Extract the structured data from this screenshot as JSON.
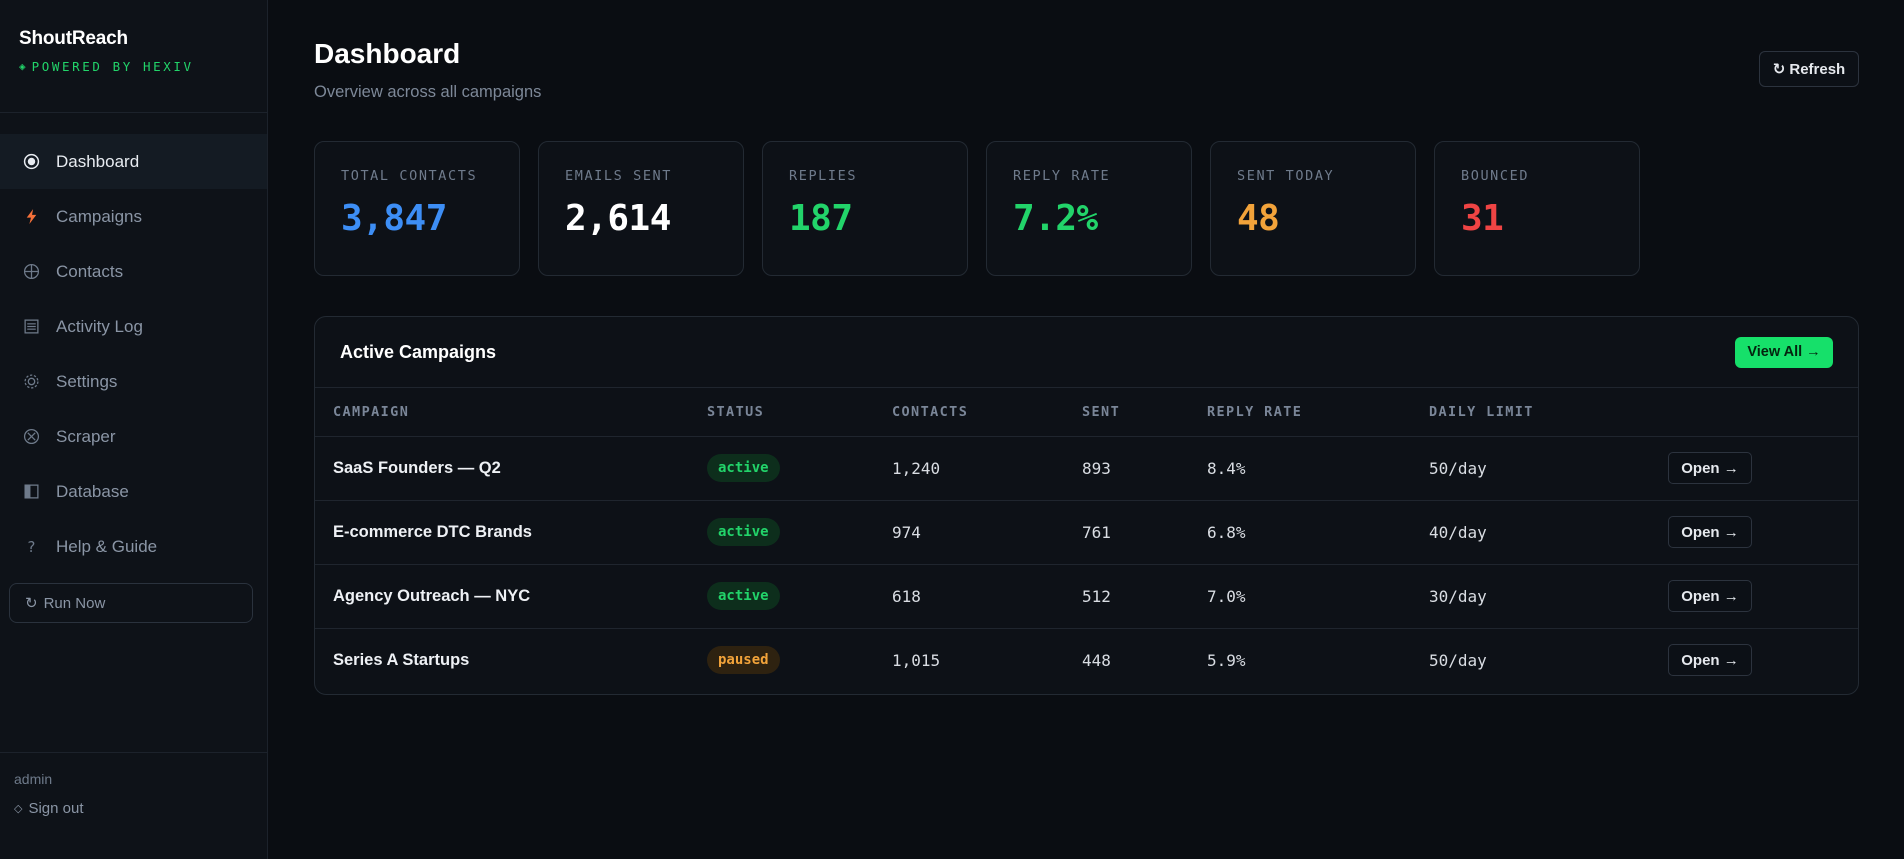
{
  "brand": {
    "name": "ShoutReach",
    "sub": "POWERED BY HEXIV",
    "sub_icon": "◈"
  },
  "nav": [
    {
      "label": "Dashboard",
      "icon": "dot-circle-icon",
      "active": true
    },
    {
      "label": "Campaigns",
      "icon": "bolt-icon",
      "active": false
    },
    {
      "label": "Contacts",
      "icon": "globe-icon",
      "active": false
    },
    {
      "label": "Activity Log",
      "icon": "list-icon",
      "active": false
    },
    {
      "label": "Settings",
      "icon": "gear-icon",
      "active": false
    },
    {
      "label": "Scraper",
      "icon": "crosshair-icon",
      "active": false
    },
    {
      "label": "Database",
      "icon": "database-icon",
      "active": false
    },
    {
      "label": "Help & Guide",
      "icon": "question-icon",
      "active": false
    }
  ],
  "run_now": {
    "label": "Run Now",
    "icon": "↻"
  },
  "footer": {
    "user": "admin",
    "signout": "Sign out",
    "signout_icon": "◇"
  },
  "header": {
    "title": "Dashboard",
    "subtitle": "Overview across all campaigns",
    "refresh_label": "Refresh",
    "refresh_icon": "↻"
  },
  "stats": [
    {
      "label": "TOTAL CONTACTS",
      "value": "3,847",
      "color": "#3d8ef5"
    },
    {
      "label": "EMAILS SENT",
      "value": "2,614",
      "color": "#ffffff"
    },
    {
      "label": "REPLIES",
      "value": "187",
      "color": "#22d46a"
    },
    {
      "label": "REPLY RATE",
      "value": "7.2%",
      "color": "#22d46a"
    },
    {
      "label": "SENT TODAY",
      "value": "48",
      "color": "#f2a33a"
    },
    {
      "label": "BOUNCED",
      "value": "31",
      "color": "#ef4444"
    }
  ],
  "campaigns": {
    "title": "Active Campaigns",
    "view_all": "View All →",
    "columns": [
      "CAMPAIGN",
      "STATUS",
      "CONTACTS",
      "SENT",
      "REPLY RATE",
      "DAILY LIMIT",
      ""
    ],
    "open_label": "Open →",
    "rows": [
      {
        "name": "SaaS Founders — Q2",
        "status": "active",
        "contacts": "1,240",
        "sent": "893",
        "reply_rate": "8.4%",
        "daily_limit": "50/day"
      },
      {
        "name": "E-commerce DTC Brands",
        "status": "active",
        "contacts": "974",
        "sent": "761",
        "reply_rate": "6.8%",
        "daily_limit": "40/day"
      },
      {
        "name": "Agency Outreach — NYC",
        "status": "active",
        "contacts": "618",
        "sent": "512",
        "reply_rate": "7.0%",
        "daily_limit": "30/day"
      },
      {
        "name": "Series A Startups",
        "status": "paused",
        "contacts": "1,015",
        "sent": "448",
        "reply_rate": "5.9%",
        "daily_limit": "50/day"
      }
    ]
  }
}
